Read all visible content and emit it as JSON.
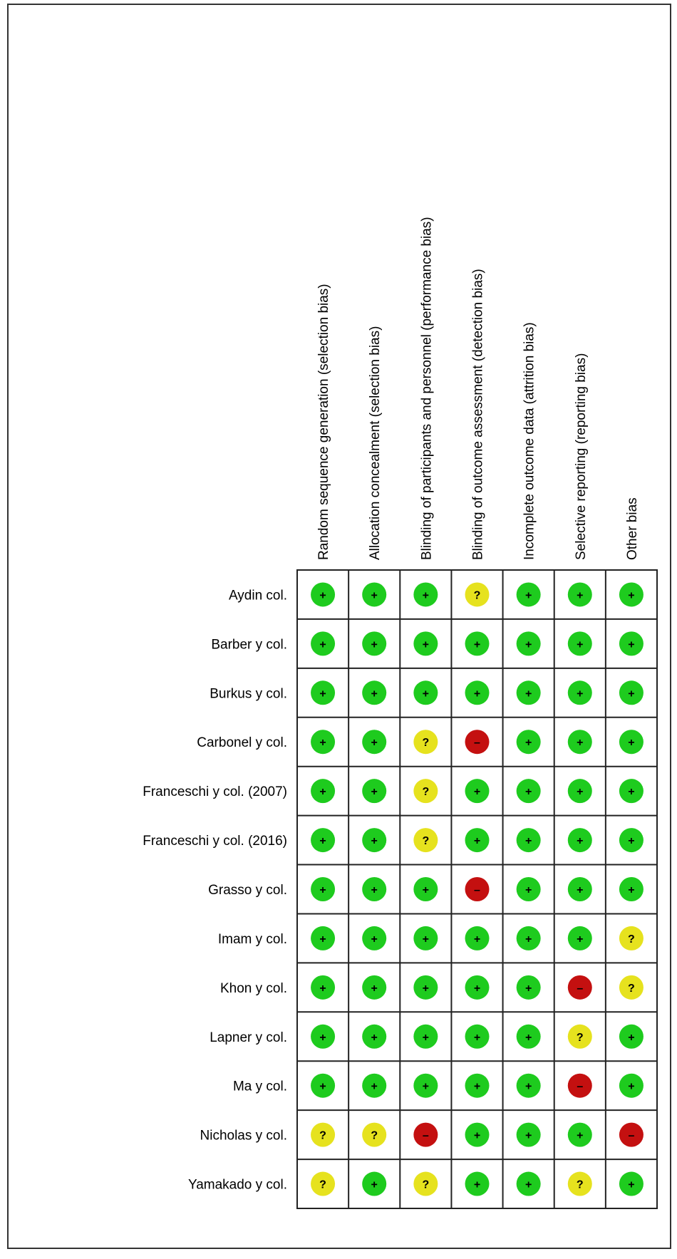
{
  "table": {
    "columns": [
      "Random sequence generation (selection bias)",
      "Allocation concealment (selection bias)",
      "Blinding of participants and personnel (performance bias)",
      "Blinding of outcome assessment (detection bias)",
      "Incomplete outcome data (attrition bias)",
      "Selective reporting (reporting bias)",
      "Other bias"
    ],
    "rows": [
      {
        "study": "Aydin col.",
        "cells": [
          "+",
          "+",
          "+",
          "?",
          "+",
          "+",
          "+"
        ]
      },
      {
        "study": "Barber y col.",
        "cells": [
          "+",
          "+",
          "+",
          "+",
          "+",
          "+",
          "+"
        ]
      },
      {
        "study": "Burkus y col.",
        "cells": [
          "+",
          "+",
          "+",
          "+",
          "+",
          "+",
          "+"
        ]
      },
      {
        "study": "Carbonel y col.",
        "cells": [
          "+",
          "+",
          "?",
          "–",
          "+",
          "+",
          "+"
        ]
      },
      {
        "study": "Franceschi y col. (2007)",
        "cells": [
          "+",
          "+",
          "?",
          "+",
          "+",
          "+",
          "+"
        ]
      },
      {
        "study": "Franceschi y col. (2016)",
        "cells": [
          "+",
          "+",
          "?",
          "+",
          "+",
          "+",
          "+"
        ]
      },
      {
        "study": "Grasso y col.",
        "cells": [
          "+",
          "+",
          "+",
          "–",
          "+",
          "+",
          "+"
        ]
      },
      {
        "study": "Imam y col.",
        "cells": [
          "+",
          "+",
          "+",
          "+",
          "+",
          "+",
          "?"
        ]
      },
      {
        "study": "Khon y col.",
        "cells": [
          "+",
          "+",
          "+",
          "+",
          "+",
          "–",
          "?"
        ]
      },
      {
        "study": "Lapner y col.",
        "cells": [
          "+",
          "+",
          "+",
          "+",
          "+",
          "?",
          "+"
        ]
      },
      {
        "study": "Ma y col.",
        "cells": [
          "+",
          "+",
          "+",
          "+",
          "+",
          "–",
          "+"
        ]
      },
      {
        "study": "Nicholas y col.",
        "cells": [
          "?",
          "?",
          "–",
          "+",
          "+",
          "+",
          "–"
        ]
      },
      {
        "study": "Yamakado y col.",
        "cells": [
          "?",
          "+",
          "?",
          "+",
          "+",
          "?",
          "+"
        ]
      }
    ],
    "colors": {
      "+": "#1ecb1e",
      "?": "#e6e21e",
      "–": "#c41010"
    }
  }
}
